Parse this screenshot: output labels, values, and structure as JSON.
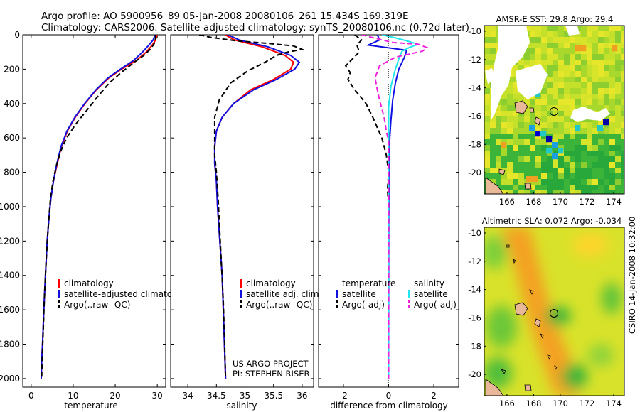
{
  "header": {
    "line1": "Argo profile: AO 5900956_89 05-Jan-2008 20080106_261 15.434S 169.319E",
    "line2": "Climatology: CARS2006. Satellite-adjusted climatology: synTS_20080106.nc (0.72d later)"
  },
  "colors": {
    "red": "#ff0000",
    "blue": "#1010e0",
    "black": "#000000",
    "cyan": "#22e5ee",
    "magenta": "#ee22dd",
    "land": "#e8b898"
  },
  "chart_data": [
    {
      "type": "line",
      "id": "temperature",
      "xlabel": "temperature",
      "ylabel": "",
      "xlim": [
        -2,
        32
      ],
      "ylim": [
        2050,
        0
      ],
      "xticks": [
        0,
        10,
        20,
        30
      ],
      "yticks": [
        0,
        200,
        400,
        600,
        800,
        1000,
        1200,
        1400,
        1600,
        1800,
        2000
      ],
      "series": [
        {
          "name": "climatology",
          "color": "red",
          "dash": "",
          "points": [
            [
              29.9,
              0
            ],
            [
              29.6,
              30
            ],
            [
              28.8,
              60
            ],
            [
              27.4,
              100
            ],
            [
              25,
              150
            ],
            [
              21.5,
              200
            ],
            [
              18.5,
              250
            ],
            [
              15.5,
              320
            ],
            [
              12.8,
              400
            ],
            [
              10.5,
              480
            ],
            [
              8.6,
              560
            ],
            [
              7.2,
              650
            ],
            [
              6.2,
              750
            ],
            [
              5.3,
              850
            ],
            [
              4.7,
              950
            ],
            [
              4.3,
              1050
            ],
            [
              3.8,
              1200
            ],
            [
              3.4,
              1400
            ],
            [
              3.0,
              1600
            ],
            [
              2.7,
              1800
            ],
            [
              2.5,
              1900
            ],
            [
              2.4,
              2000
            ]
          ]
        },
        {
          "name": "satellite-adjusted climatology",
          "color": "blue",
          "dash": "",
          "points": [
            [
              29.5,
              0
            ],
            [
              29,
              30
            ],
            [
              28,
              60
            ],
            [
              26.5,
              100
            ],
            [
              24.3,
              150
            ],
            [
              21.2,
              200
            ],
            [
              18.3,
              250
            ],
            [
              15.4,
              320
            ],
            [
              12.7,
              400
            ],
            [
              10.4,
              480
            ],
            [
              8.5,
              560
            ],
            [
              7.1,
              650
            ],
            [
              6.1,
              750
            ],
            [
              5.3,
              850
            ],
            [
              4.7,
              950
            ],
            [
              4.3,
              1050
            ],
            [
              3.8,
              1200
            ],
            [
              3.4,
              1400
            ],
            [
              3.0,
              1600
            ],
            [
              2.7,
              1800
            ],
            [
              2.5,
              1900
            ],
            [
              2.4,
              2000
            ]
          ]
        },
        {
          "name": "Argo(..raw -QC)",
          "color": "black",
          "dash": "7,4",
          "points": [
            [
              29.6,
              0
            ],
            [
              29.6,
              20
            ],
            [
              29.3,
              50
            ],
            [
              28.5,
              80
            ],
            [
              26.8,
              120
            ],
            [
              24.5,
              160
            ],
            [
              21.4,
              220
            ],
            [
              18.6,
              280
            ],
            [
              15.8,
              360
            ],
            [
              13.2,
              440
            ],
            [
              10.6,
              520
            ],
            [
              8.4,
              600
            ],
            [
              7,
              680
            ],
            [
              6,
              760
            ],
            [
              5.2,
              850
            ],
            [
              4.6,
              950
            ],
            [
              4.1,
              1100
            ],
            [
              3.6,
              1300
            ],
            [
              3.2,
              1500
            ],
            [
              2.9,
              1700
            ],
            [
              2.6,
              1900
            ],
            [
              2.5,
              2000
            ]
          ]
        }
      ],
      "legend": [
        "climatology",
        "satellite-adjusted climatology",
        "Argo(..raw -QC)"
      ]
    },
    {
      "type": "line",
      "id": "salinity",
      "xlabel": "salinity",
      "ylabel": "",
      "xlim": [
        33.7,
        36.2
      ],
      "ylim": [
        2050,
        0
      ],
      "xticks": [
        34,
        34.5,
        35,
        35.5,
        36
      ],
      "yticks": [
        0,
        200,
        400,
        600,
        800,
        1000,
        1200,
        1400,
        1600,
        1800,
        2000
      ],
      "series": [
        {
          "name": "climatology",
          "color": "red",
          "dash": "",
          "points": [
            [
              34.65,
              0
            ],
            [
              34.82,
              30
            ],
            [
              35.3,
              70
            ],
            [
              35.7,
              120
            ],
            [
              35.85,
              160
            ],
            [
              35.8,
              200
            ],
            [
              35.5,
              260
            ],
            [
              35.1,
              320
            ],
            [
              34.8,
              400
            ],
            [
              34.6,
              480
            ],
            [
              34.5,
              560
            ],
            [
              34.47,
              650
            ],
            [
              34.47,
              750
            ],
            [
              34.5,
              850
            ],
            [
              34.52,
              1000
            ],
            [
              34.56,
              1200
            ],
            [
              34.6,
              1400
            ],
            [
              34.62,
              1600
            ],
            [
              34.64,
              1800
            ],
            [
              34.66,
              2000
            ]
          ]
        },
        {
          "name": "satellite adj. clim.",
          "color": "blue",
          "dash": "",
          "points": [
            [
              34.7,
              0
            ],
            [
              34.9,
              30
            ],
            [
              35.4,
              70
            ],
            [
              35.8,
              120
            ],
            [
              35.95,
              160
            ],
            [
              35.87,
              200
            ],
            [
              35.55,
              260
            ],
            [
              35.15,
              320
            ],
            [
              34.8,
              400
            ],
            [
              34.6,
              480
            ],
            [
              34.5,
              560
            ],
            [
              34.47,
              650
            ],
            [
              34.47,
              750
            ],
            [
              34.5,
              850
            ],
            [
              34.52,
              1000
            ],
            [
              34.56,
              1200
            ],
            [
              34.6,
              1400
            ],
            [
              34.62,
              1600
            ],
            [
              34.64,
              1800
            ],
            [
              34.66,
              2000
            ]
          ]
        },
        {
          "name": "Argo(..raw -QC)",
          "color": "black",
          "dash": "7,4",
          "points": [
            [
              34.2,
              0
            ],
            [
              34.4,
              15
            ],
            [
              34.85,
              35
            ],
            [
              35.4,
              50
            ],
            [
              35.85,
              65
            ],
            [
              36.0,
              85
            ],
            [
              35.75,
              100
            ],
            [
              35.55,
              120
            ],
            [
              35.35,
              160
            ],
            [
              35.05,
              210
            ],
            [
              34.75,
              280
            ],
            [
              34.55,
              380
            ],
            [
              34.47,
              480
            ],
            [
              34.47,
              600
            ],
            [
              34.47,
              700
            ],
            [
              34.5,
              800
            ],
            [
              34.53,
              950
            ],
            [
              34.56,
              1150
            ],
            [
              34.59,
              1350
            ],
            [
              34.62,
              1550
            ],
            [
              34.64,
              1750
            ],
            [
              34.66,
              2000
            ]
          ]
        }
      ],
      "legend": [
        "climatology",
        "satellite adj. clim.",
        "Argo(..raw -QC)"
      ]
    },
    {
      "type": "line",
      "id": "difference",
      "xlabel": "difference from climatology",
      "ylabel": "",
      "xlim": [
        -3.1,
        3.1
      ],
      "ylim": [
        2050,
        0
      ],
      "xticks": [
        -2,
        0,
        2
      ],
      "yticks": [
        0,
        200,
        400,
        600,
        800,
        1000,
        1200,
        1400,
        1600,
        1800,
        2000
      ],
      "series": [
        {
          "name": "temperature satellite",
          "color": "blue",
          "dash": "",
          "points": [
            [
              -0.5,
              0
            ],
            [
              -0.4,
              30
            ],
            [
              -0.9,
              60
            ],
            [
              0.8,
              90
            ],
            [
              0.7,
              130
            ],
            [
              0.45,
              200
            ],
            [
              0.3,
              280
            ],
            [
              0.18,
              380
            ],
            [
              0.1,
              500
            ],
            [
              0.05,
              600
            ],
            [
              0.02,
              800
            ],
            [
              0.01,
              1100
            ],
            [
              0,
              2000
            ]
          ]
        },
        {
          "name": "temperature Argo(-adj)",
          "color": "black",
          "dash": "7,4",
          "points": [
            [
              -1.5,
              0
            ],
            [
              -1.2,
              30
            ],
            [
              -1.4,
              60
            ],
            [
              -1.3,
              100
            ],
            [
              -1.6,
              140
            ],
            [
              -1.9,
              180
            ],
            [
              -1.7,
              220
            ],
            [
              -1.8,
              260
            ],
            [
              -1.5,
              320
            ],
            [
              -1.0,
              400
            ],
            [
              -0.7,
              480
            ],
            [
              -0.5,
              540
            ],
            [
              -0.3,
              600
            ],
            [
              -0.1,
              700
            ],
            [
              0,
              800
            ],
            [
              -0.05,
              900
            ],
            [
              0,
              1000
            ],
            [
              0,
              2000
            ]
          ]
        },
        {
          "name": "salinity satellite",
          "color": "cyan",
          "dash": "",
          "points": [
            [
              -0.3,
              0
            ],
            [
              0.2,
              15
            ],
            [
              0.8,
              35
            ],
            [
              1.3,
              55
            ],
            [
              0.9,
              75
            ],
            [
              0.6,
              95
            ],
            [
              0.5,
              120
            ],
            [
              0.3,
              200
            ],
            [
              0.1,
              300
            ],
            [
              0,
              420
            ],
            [
              0,
              2000
            ]
          ]
        },
        {
          "name": "salinity Argo(-adj)",
          "color": "magenta",
          "dash": "7,4",
          "points": [
            [
              -1.2,
              0
            ],
            [
              -0.6,
              20
            ],
            [
              0.2,
              45
            ],
            [
              1.3,
              55
            ],
            [
              1.7,
              75
            ],
            [
              1.5,
              95
            ],
            [
              0.3,
              130
            ],
            [
              -0.4,
              180
            ],
            [
              -0.6,
              250
            ],
            [
              -0.5,
              320
            ],
            [
              -0.4,
              380
            ],
            [
              -0.2,
              480
            ],
            [
              -0.1,
              560
            ],
            [
              0,
              620
            ],
            [
              0,
              2000
            ]
          ]
        }
      ],
      "legend_headers": [
        "temperature",
        "salinity"
      ],
      "legend_left": [
        "satellite",
        "Argo(-adj)"
      ],
      "legend_right": [
        "satellite",
        "Argo(-adj)"
      ]
    },
    {
      "type": "heatmap",
      "id": "sst-map",
      "title": "AMSR-E SST: 29.8 Argo: 29.4",
      "xlim": [
        164.3,
        174.8
      ],
      "ylim": [
        -21.5,
        -9.6
      ],
      "xticks": [
        166,
        168,
        170,
        172,
        174
      ],
      "yticks": [
        -10,
        -12,
        -14,
        -16,
        -18,
        -20
      ]
    },
    {
      "type": "heatmap",
      "id": "sla-map",
      "title": "Altimetric SLA: 0.072 Argo: -0.034",
      "xlim": [
        164.3,
        174.8
      ],
      "ylim": [
        -21.5,
        -9.6
      ],
      "xticks": [
        166,
        168,
        170,
        172,
        174
      ],
      "yticks": [
        -10,
        -12,
        -14,
        -16,
        -18,
        -20
      ]
    }
  ],
  "annotations": {
    "project": "US ARGO PROJECT",
    "pi": "PI: STEPHEN RISER",
    "stamp": "CSIRO 14-Jan-2008 10:32:00"
  }
}
